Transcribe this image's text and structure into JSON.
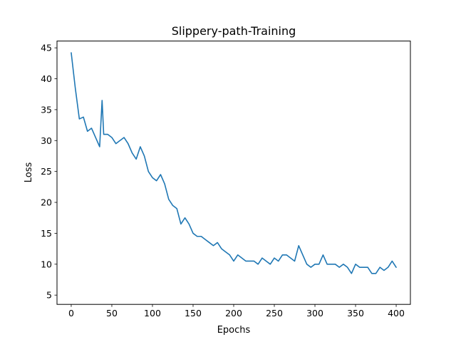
{
  "chart_data": {
    "type": "line",
    "title": "Slippery-path-Training",
    "xlabel": "Epochs",
    "ylabel": "Loss",
    "xlim": [
      -17.5,
      417.5
    ],
    "ylim": [
      3.5,
      46.1
    ],
    "xticks": [
      0,
      50,
      100,
      150,
      200,
      250,
      300,
      350,
      400
    ],
    "yticks": [
      5,
      10,
      15,
      20,
      25,
      30,
      35,
      40,
      45
    ],
    "grid": false,
    "legend": "none",
    "series": [
      {
        "color": "#1f77b4",
        "x": [
          0,
          5,
          10,
          15,
          20,
          25,
          30,
          35,
          38,
          40,
          45,
          50,
          55,
          60,
          65,
          70,
          75,
          80,
          85,
          90,
          95,
          100,
          105,
          110,
          115,
          120,
          125,
          130,
          135,
          140,
          145,
          150,
          155,
          160,
          165,
          170,
          175,
          180,
          185,
          190,
          195,
          200,
          205,
          210,
          215,
          220,
          225,
          230,
          235,
          240,
          245,
          250,
          255,
          260,
          265,
          270,
          275,
          280,
          285,
          290,
          295,
          300,
          305,
          310,
          315,
          320,
          325,
          330,
          335,
          340,
          345,
          350,
          355,
          360,
          365,
          370,
          375,
          380,
          385,
          390,
          395,
          400
        ],
        "y": [
          44.2,
          38.5,
          33.5,
          33.8,
          31.5,
          32.0,
          30.5,
          29.0,
          36.5,
          31.0,
          31.0,
          30.5,
          29.5,
          30.0,
          30.5,
          29.5,
          28.0,
          27.0,
          29.0,
          27.5,
          25.0,
          24.0,
          23.5,
          24.5,
          23.0,
          20.5,
          19.5,
          19.0,
          16.5,
          17.5,
          16.5,
          15.0,
          14.5,
          14.5,
          14.0,
          13.5,
          13.0,
          13.5,
          12.5,
          12.0,
          11.5,
          10.5,
          11.5,
          11.0,
          10.5,
          10.5,
          10.5,
          10.0,
          11.0,
          10.5,
          10.0,
          11.0,
          10.5,
          11.5,
          11.5,
          11.0,
          10.5,
          13.0,
          11.5,
          10.0,
          9.5,
          10.0,
          10.0,
          11.5,
          10.0,
          10.0,
          10.0,
          9.5,
          10.0,
          9.5,
          8.5,
          10.0,
          9.5,
          9.5,
          9.5,
          8.5,
          8.5,
          9.5,
          9.0,
          9.5,
          10.5,
          9.5
        ]
      }
    ]
  }
}
